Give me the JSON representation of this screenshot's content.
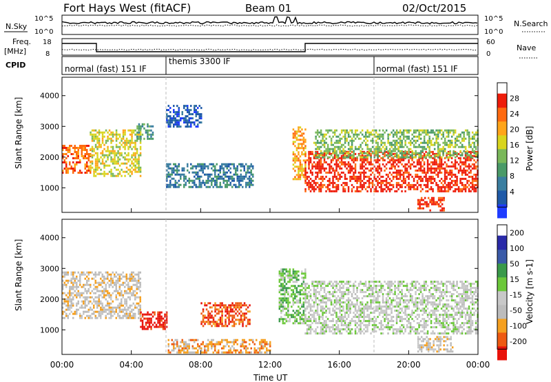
{
  "header": {
    "station": "Fort Hays West (fitACF)",
    "beam": "Beam 01",
    "date": "02/Oct/2015"
  },
  "noise_panel": {
    "left_label": "N.Sky",
    "right_label": "N.Search",
    "left_ticks": [
      "10^5",
      "10^0"
    ],
    "right_ticks": [
      "10^5",
      "10^0"
    ]
  },
  "freq_panel": {
    "left_label_line1": "Freq.",
    "left_label_line2": "[MHz]",
    "left_ticks": [
      "18",
      "8"
    ],
    "right_label": "Nave",
    "right_ticks": [
      "60",
      "0"
    ]
  },
  "cpid": {
    "label": "CPID",
    "segments": [
      {
        "name": "normal (fast) 151 IF",
        "start_hour": 0,
        "end_hour": 6
      },
      {
        "name": "themis 3300 IF",
        "start_hour": 6,
        "end_hour": 18
      },
      {
        "name": "normal (fast) 151 IF",
        "start_hour": 18,
        "end_hour": 24
      }
    ]
  },
  "colors": {
    "power": [
      "#1f3cff",
      "#1f5aa8",
      "#3a7ea0",
      "#4a9a68",
      "#7ab85a",
      "#d9d51e",
      "#ffa51a",
      "#ff6a10",
      "#ee1c0a"
    ],
    "velocity": [
      "#e8120a",
      "#ee5a12",
      "#f5a020",
      "#bcbcbc",
      "#c8c8c8",
      "#6cc83a",
      "#3a9a4a",
      "#3a5aa8",
      "#2a2aa8"
    ],
    "ground_scatter": "#bdbdbd"
  },
  "chart_data": [
    {
      "type": "heatmap",
      "name": "Power",
      "ylabel": "Slant Range [km]",
      "xlim_hours": [
        0,
        24
      ],
      "ylim_km": [
        200,
        4600
      ],
      "y_ticks": [
        "1000",
        "2000",
        "3000",
        "4000"
      ],
      "colorbar": {
        "label": "Power [dB]",
        "ticks": [
          "4",
          "8",
          "12",
          "16",
          "20",
          "24",
          "28"
        ],
        "range": [
          0,
          32
        ]
      },
      "bands": [
        {
          "t0": 0.0,
          "t1": 1.6,
          "r0": 1500,
          "r1": 2400,
          "level": 7
        },
        {
          "t0": 1.6,
          "t1": 4.5,
          "r0": 1400,
          "r1": 2900,
          "level": 5
        },
        {
          "t0": 4.3,
          "t1": 5.2,
          "r0": 2600,
          "r1": 3100,
          "level": 3
        },
        {
          "t0": 6.0,
          "t1": 11.0,
          "r0": 1000,
          "r1": 1800,
          "level": 2
        },
        {
          "t0": 6.0,
          "t1": 8.0,
          "r0": 3000,
          "r1": 3700,
          "level": 1
        },
        {
          "t0": 13.3,
          "t1": 14.0,
          "r0": 1300,
          "r1": 3000,
          "level": 6
        },
        {
          "t0": 14.0,
          "t1": 24.0,
          "r0": 900,
          "r1": 2200,
          "level": 8
        },
        {
          "t0": 14.5,
          "t1": 24.0,
          "r0": 2000,
          "r1": 2900,
          "level": 4
        },
        {
          "t0": 20.5,
          "t1": 22.0,
          "r0": 250,
          "r1": 700,
          "level": 8
        }
      ]
    },
    {
      "type": "heatmap",
      "name": "Velocity",
      "ylabel": "Slant Range [km]",
      "xlabel": "Time UT",
      "xlim_hours": [
        0,
        24
      ],
      "ylim_km": [
        200,
        4600
      ],
      "x_ticks": [
        "00:00",
        "04:00",
        "08:00",
        "12:00",
        "16:00",
        "20:00",
        "00:00"
      ],
      "y_ticks": [
        "1000",
        "2000",
        "3000",
        "4000"
      ],
      "colorbar": {
        "label": "Velocity [m s-1]",
        "ticks": [
          "200",
          "100",
          "50",
          "15",
          "-15",
          "-50",
          "-100",
          "-200"
        ],
        "range": [
          -250,
          250
        ]
      },
      "bands": [
        {
          "t0": 0.0,
          "t1": 4.5,
          "r0": 1400,
          "r1": 2900,
          "level": 3
        },
        {
          "t0": 4.5,
          "t1": 6.0,
          "r0": 1000,
          "r1": 1600,
          "level": 0
        },
        {
          "t0": 8.0,
          "t1": 10.8,
          "r0": 1100,
          "r1": 1900,
          "level": 1
        },
        {
          "t0": 6.0,
          "t1": 12.0,
          "r0": 250,
          "r1": 700,
          "level": 2
        },
        {
          "t0": 12.5,
          "t1": 14.0,
          "r0": 1200,
          "r1": 3000,
          "level": 5
        },
        {
          "t0": 14.0,
          "t1": 24.0,
          "r0": 900,
          "r1": 2600,
          "level": 4
        },
        {
          "t0": 20.5,
          "t1": 22.5,
          "r0": 300,
          "r1": 800,
          "level": 3
        }
      ]
    }
  ]
}
